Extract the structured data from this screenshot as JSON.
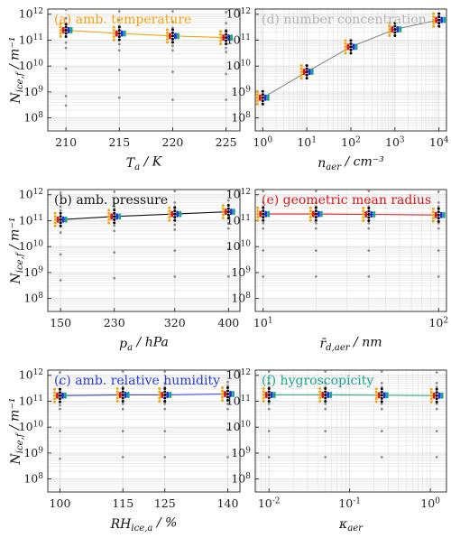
{
  "figure": {
    "ylabel": "N_ice,f / m⁻¹",
    "colors": {
      "orange": "#f5a30f",
      "red": "#e01414",
      "black": "#000000",
      "blue": "#1530e8",
      "teal": "#1aa68c",
      "gray": "#8c8c8c",
      "grid": "#dcdcdc",
      "line_gray": "#888888",
      "line_black": "#111111",
      "line_red": "#e02020",
      "line_blue": "#2a3ae0",
      "line_green": "#2aa880"
    }
  },
  "chart_data": [
    {
      "id": "a",
      "type": "scatter",
      "title": "(a) amb. temperature",
      "title_color": "#f5a30f",
      "line_color": "#f5a30f",
      "xlabel": "T_a / K",
      "xscale": "linear",
      "xlim": [
        208.3,
        226.3
      ],
      "xticks": [
        210,
        215,
        220,
        225
      ],
      "xtick_labels": [
        "210",
        "215",
        "220",
        "225"
      ],
      "ylim_log10": [
        7.5,
        12.2
      ],
      "x": [
        210,
        215,
        220,
        225
      ],
      "y": [
        240000000000.0,
        180000000000.0,
        145000000000.0,
        125000000000.0
      ],
      "gray_points": [
        [
          300000000.0,
          700000000.0,
          8000000000.0,
          50000000000.0,
          80000000000.0,
          400000000000.0,
          700000000000.0,
          1500000000000.0
        ],
        [
          600000000.0,
          7000000000.0,
          40000000000.0,
          70000000000.0,
          350000000000.0,
          600000000000.0,
          1300000000000.0
        ],
        [
          500000000.0,
          6000000000.0,
          40000000000.0,
          60000000000.0,
          300000000000.0,
          500000000000.0,
          1300000000000.0
        ],
        [
          500000000.0,
          5000000000.0,
          35000000000.0,
          50000000000.0,
          250000000000.0,
          450000000000.0,
          1200000000000.0
        ]
      ]
    },
    {
      "id": "d",
      "type": "scatter",
      "title": "(d) number concentration",
      "title_color": "#b4b4b4",
      "line_color": "#888888",
      "xlabel": "n_aer / cm⁻³",
      "xscale": "log",
      "xlim_log10": [
        -0.17,
        4.17
      ],
      "xticks": [
        1,
        10,
        100,
        1000,
        10000
      ],
      "xtick_labels": [
        "10^0",
        "10^1",
        "10^2",
        "10^3",
        "10^4"
      ],
      "ylim_log10": [
        7.5,
        12.2
      ],
      "x": [
        1,
        10,
        100,
        1000,
        10000
      ],
      "y": [
        600000000.0,
        6000000000.0,
        55000000000.0,
        260000000000.0,
        600000000000.0
      ],
      "gray_points": [
        [],
        [],
        [],
        [],
        []
      ]
    },
    {
      "id": "b",
      "type": "scatter",
      "title": "(b) amb. pressure",
      "title_color": "#111111",
      "line_color": "#111111",
      "xlabel": "p_a / hPa",
      "xscale": "linear",
      "xlim": [
        131,
        417
      ],
      "xticks": [
        150,
        230,
        320,
        400
      ],
      "xtick_labels": [
        "150",
        "230",
        "320",
        "400"
      ],
      "ylim_log10": [
        7.5,
        12.2
      ],
      "x": [
        150,
        230,
        320,
        400
      ],
      "y": [
        110000000000.0,
        145000000000.0,
        180000000000.0,
        220000000000.0
      ],
      "gray_points": [
        [
          500000000.0,
          5000000000.0,
          35000000000.0,
          60000000000.0,
          250000000000.0,
          350000000000.0,
          1200000000000.0
        ],
        [
          600000000.0,
          6000000000.0,
          40000000000.0,
          65000000000.0,
          300000000000.0,
          450000000000.0,
          1300000000000.0
        ],
        [
          700000000.0,
          7000000000.0,
          45000000000.0,
          70000000000.0,
          350000000000.0,
          500000000000.0,
          1400000000000.0
        ],
        [
          700000000.0,
          8000000000.0,
          50000000000.0,
          80000000000.0,
          400000000000.0,
          600000000000.0,
          1500000000000.0
        ]
      ]
    },
    {
      "id": "e",
      "type": "scatter",
      "title": "(e) geometric mean radius",
      "title_color": "#e01414",
      "line_color": "#e02020",
      "xlabel": "r̄_d,aer / nm",
      "xscale": "log",
      "xlim_log10": [
        0.955,
        2.045
      ],
      "xticks": [
        10,
        100
      ],
      "xtick_labels": [
        "10^1",
        "10^2"
      ],
      "ylim_log10": [
        7.5,
        12.2
      ],
      "x": [
        10,
        20,
        40,
        100
      ],
      "y": [
        180000000000.0,
        180000000000.0,
        175000000000.0,
        165000000000.0
      ],
      "gray_points": [
        [
          700000000.0,
          7000000000.0,
          50000000000.0,
          80000000000.0,
          350000000000.0,
          500000000000.0,
          1400000000000.0
        ],
        [
          700000000.0,
          7000000000.0,
          50000000000.0,
          80000000000.0,
          350000000000.0,
          500000000000.0,
          1400000000000.0
        ],
        [
          700000000.0,
          7000000000.0,
          50000000000.0,
          80000000000.0,
          350000000000.0,
          500000000000.0,
          1400000000000.0
        ],
        [
          700000000.0,
          7000000000.0,
          50000000000.0,
          80000000000.0,
          350000000000.0,
          500000000000.0,
          1300000000000.0
        ]
      ]
    },
    {
      "id": "c",
      "type": "scatter",
      "title": "(c) amb. relative humidity",
      "title_color": "#2a3ae0",
      "line_color": "#2a3ae0",
      "xlabel": "RH_ice,a / %",
      "xscale": "linear",
      "xlim": [
        97.1,
        142.9
      ],
      "xticks": [
        100,
        115,
        125,
        140
      ],
      "xtick_labels": [
        "100",
        "115",
        "125",
        "140"
      ],
      "ylim_log10": [
        7.5,
        12.2
      ],
      "x": [
        100,
        115,
        125,
        140
      ],
      "y": [
        165000000000.0,
        175000000000.0,
        175000000000.0,
        190000000000.0
      ],
      "gray_points": [
        [
          600000000.0,
          7000000000.0,
          50000000000.0,
          70000000000.0,
          300000000000.0,
          500000000000.0,
          1300000000000.0
        ],
        [
          700000000.0,
          7000000000.0,
          50000000000.0,
          80000000000.0,
          350000000000.0,
          500000000000.0,
          1400000000000.0
        ],
        [
          700000000.0,
          7000000000.0,
          50000000000.0,
          80000000000.0,
          350000000000.0,
          500000000000.0,
          1400000000000.0
        ],
        [
          700000000.0,
          8000000000.0,
          50000000000.0,
          80000000000.0,
          400000000000.0,
          550000000000.0,
          1500000000000.0
        ]
      ]
    },
    {
      "id": "f",
      "type": "scatter",
      "title": "(f) hygroscopicity",
      "title_color": "#1aa68c",
      "line_color": "#2aa880",
      "xlabel": "κ_aer",
      "xscale": "log",
      "xlim_log10": [
        -2.17,
        0.2
      ],
      "xticks": [
        0.01,
        0.1,
        1
      ],
      "xtick_labels": [
        "10^-2",
        "10^-1",
        "10^0"
      ],
      "ylim_log10": [
        7.5,
        12.2
      ],
      "x": [
        0.01,
        0.05,
        0.25,
        1.2
      ],
      "y": [
        175000000000.0,
        175000000000.0,
        170000000000.0,
        165000000000.0
      ],
      "gray_points": [
        [
          700000000.0,
          7000000000.0,
          50000000000.0,
          80000000000.0,
          350000000000.0,
          500000000000.0,
          1400000000000.0
        ],
        [
          700000000.0,
          7000000000.0,
          50000000000.0,
          80000000000.0,
          350000000000.0,
          500000000000.0,
          1400000000000.0
        ],
        [
          700000000.0,
          7000000000.0,
          50000000000.0,
          80000000000.0,
          350000000000.0,
          500000000000.0,
          1400000000000.0
        ],
        [
          700000000.0,
          7000000000.0,
          50000000000.0,
          80000000000.0,
          350000000000.0,
          500000000000.0,
          1300000000000.0
        ]
      ]
    }
  ]
}
